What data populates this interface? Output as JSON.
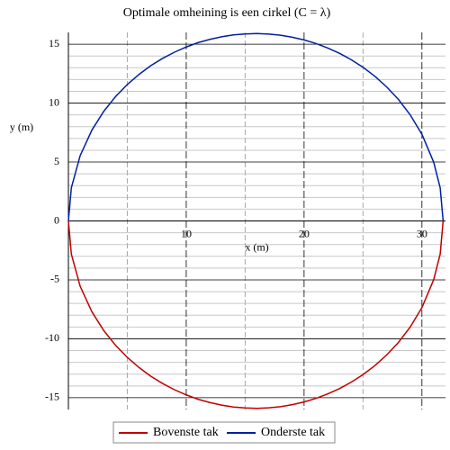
{
  "chart_data": {
    "type": "line",
    "title": "Optimale omheining is een cirkel (C = λ)",
    "xlabel": "x (m)",
    "ylabel": "y (m)",
    "x": [
      0,
      0.25,
      1,
      2,
      3,
      4,
      5,
      6,
      7,
      8,
      9,
      10,
      11,
      12,
      13,
      14,
      15,
      16,
      17,
      18,
      19,
      20,
      21,
      22,
      23,
      24,
      25,
      26,
      27,
      28,
      29,
      30,
      31,
      31.55,
      31.8
    ],
    "series": [
      {
        "name": "Bovenste tak",
        "color": "#c00000",
        "values": [
          0,
          -2.81,
          -5.55,
          -7.72,
          -9.3,
          -10.55,
          -11.58,
          -12.44,
          -13.18,
          -13.8,
          -14.32,
          -14.76,
          -15.13,
          -15.41,
          -15.63,
          -15.79,
          -15.87,
          -15.9,
          -15.86,
          -15.76,
          -15.59,
          -15.36,
          -15.06,
          -14.68,
          -14.23,
          -13.68,
          -13.04,
          -12.28,
          -11.38,
          -10.32,
          -9.01,
          -7.35,
          -4.98,
          -2.81,
          0
        ]
      },
      {
        "name": "Onderste tak",
        "color": "#0020a0",
        "values": [
          0,
          2.81,
          5.55,
          7.72,
          9.3,
          10.55,
          11.58,
          12.44,
          13.18,
          13.8,
          14.32,
          14.76,
          15.13,
          15.41,
          15.63,
          15.79,
          15.87,
          15.9,
          15.86,
          15.76,
          15.59,
          15.36,
          15.06,
          14.68,
          14.23,
          13.68,
          13.04,
          12.28,
          11.38,
          10.32,
          9.01,
          7.35,
          4.98,
          2.81,
          0
        ]
      }
    ],
    "xlim": [
      0,
      32
    ],
    "ylim": [
      -16,
      16
    ],
    "xticks": [
      10,
      20,
      30
    ],
    "yticks": [
      -15,
      -10,
      -5,
      0,
      5,
      10,
      15
    ],
    "x_minor_ticks": [
      5,
      15,
      25
    ],
    "y_minor_ticks": [
      -14,
      -13,
      -12,
      -11,
      -9,
      -8,
      -7,
      -6,
      -4,
      -3,
      -2,
      -1,
      1,
      2,
      3,
      4,
      6,
      7,
      8,
      9,
      11,
      12,
      13,
      14
    ],
    "grid": true,
    "legend": "bottom"
  }
}
